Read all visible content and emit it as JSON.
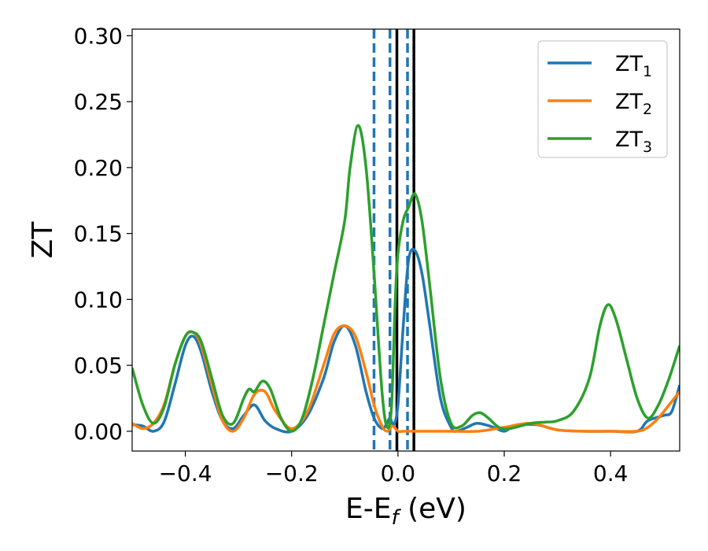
{
  "chart_data": {
    "type": "line",
    "title": "",
    "xlabel": {
      "main": "E-E",
      "sub": "f",
      "suffix": " (eV)"
    },
    "ylabel": "ZT",
    "xlim": [
      -0.5,
      0.53
    ],
    "ylim": [
      -0.015,
      0.305
    ],
    "xticks": [
      -0.4,
      -0.2,
      0.0,
      0.2,
      0.4
    ],
    "xtick_labels": [
      "−0.4",
      "−0.2",
      "0.0",
      "0.2",
      "0.4"
    ],
    "yticks": [
      0.0,
      0.05,
      0.1,
      0.15,
      0.2,
      0.25,
      0.3
    ],
    "ytick_labels": [
      "0.00",
      "0.05",
      "0.10",
      "0.15",
      "0.20",
      "0.25",
      "0.30"
    ],
    "grid": false,
    "legend_position": "top-right",
    "vlines": [
      {
        "x": -0.045,
        "style": "dashed",
        "color": "#1f77b4"
      },
      {
        "x": -0.015,
        "style": "dashed",
        "color": "#1f77b4"
      },
      {
        "x": 0.018,
        "style": "dashed",
        "color": "#1f77b4"
      },
      {
        "x": -0.002,
        "style": "solid",
        "color": "#000000"
      },
      {
        "x": 0.03,
        "style": "solid",
        "color": "#000000"
      }
    ],
    "series": [
      {
        "name": "ZT",
        "sub": "1",
        "color": "#1f77b4",
        "x": [
          -0.5,
          -0.48,
          -0.46,
          -0.44,
          -0.42,
          -0.4,
          -0.385,
          -0.37,
          -0.35,
          -0.33,
          -0.31,
          -0.29,
          -0.27,
          -0.25,
          -0.23,
          -0.2,
          -0.17,
          -0.14,
          -0.12,
          -0.1,
          -0.08,
          -0.06,
          -0.045,
          -0.03,
          -0.022,
          -0.015,
          -0.008,
          0.0,
          0.01,
          0.02,
          0.032,
          0.045,
          0.06,
          0.08,
          0.1,
          0.11,
          0.13,
          0.15,
          0.18,
          0.2,
          0.22,
          0.26,
          0.3,
          0.35,
          0.4,
          0.45,
          0.47,
          0.5,
          0.515,
          0.53
        ],
        "y": [
          0.005,
          0.004,
          0.0,
          0.007,
          0.035,
          0.065,
          0.072,
          0.06,
          0.03,
          0.008,
          0.002,
          0.012,
          0.02,
          0.008,
          0.002,
          0.0,
          0.012,
          0.04,
          0.068,
          0.08,
          0.065,
          0.03,
          0.01,
          0.002,
          0.005,
          0.01,
          0.005,
          0.02,
          0.08,
          0.13,
          0.137,
          0.12,
          0.08,
          0.025,
          0.003,
          0.0,
          0.003,
          0.006,
          0.003,
          0.0,
          0.004,
          0.005,
          0.001,
          0.0,
          0.0,
          0.0,
          0.008,
          0.012,
          0.015,
          0.035
        ]
      },
      {
        "name": "ZT",
        "sub": "2",
        "color": "#ff7f0e",
        "x": [
          -0.5,
          -0.48,
          -0.46,
          -0.44,
          -0.42,
          -0.4,
          -0.385,
          -0.37,
          -0.35,
          -0.33,
          -0.31,
          -0.29,
          -0.27,
          -0.25,
          -0.23,
          -0.2,
          -0.17,
          -0.14,
          -0.12,
          -0.1,
          -0.08,
          -0.06,
          -0.045,
          -0.03,
          -0.02,
          -0.01,
          0.0,
          0.01,
          0.02,
          0.03,
          0.04,
          0.06,
          0.08,
          0.1,
          0.15,
          0.2,
          0.25,
          0.3,
          0.35,
          0.4,
          0.45,
          0.47,
          0.49,
          0.51,
          0.53
        ],
        "y": [
          0.006,
          0.002,
          0.006,
          0.02,
          0.05,
          0.072,
          0.075,
          0.065,
          0.035,
          0.008,
          0.0,
          0.01,
          0.028,
          0.03,
          0.015,
          0.002,
          0.015,
          0.05,
          0.074,
          0.08,
          0.072,
          0.045,
          0.02,
          0.004,
          0.0,
          0.004,
          0.0,
          0.0,
          0.0,
          0.0,
          0.0,
          0.0,
          0.0,
          0.0,
          0.0,
          0.003,
          0.006,
          0.001,
          0.0,
          0.0,
          0.0,
          0.003,
          0.01,
          0.02,
          0.03
        ]
      },
      {
        "name": "ZT",
        "sub": "3",
        "color": "#2ca02c",
        "x": [
          -0.5,
          -0.48,
          -0.46,
          -0.44,
          -0.42,
          -0.4,
          -0.385,
          -0.37,
          -0.35,
          -0.33,
          -0.31,
          -0.29,
          -0.28,
          -0.27,
          -0.255,
          -0.24,
          -0.22,
          -0.2,
          -0.18,
          -0.16,
          -0.14,
          -0.12,
          -0.1,
          -0.09,
          -0.075,
          -0.06,
          -0.045,
          -0.03,
          -0.02,
          -0.012,
          -0.005,
          0.0,
          0.01,
          0.02,
          0.032,
          0.045,
          0.06,
          0.08,
          0.1,
          0.12,
          0.14,
          0.155,
          0.17,
          0.19,
          0.21,
          0.25,
          0.28,
          0.3,
          0.33,
          0.36,
          0.38,
          0.395,
          0.41,
          0.43,
          0.45,
          0.47,
          0.49,
          0.51,
          0.53
        ],
        "y": [
          0.048,
          0.02,
          0.006,
          0.018,
          0.05,
          0.072,
          0.075,
          0.068,
          0.04,
          0.012,
          0.006,
          0.025,
          0.032,
          0.03,
          0.038,
          0.032,
          0.01,
          0.0,
          0.01,
          0.04,
          0.08,
          0.12,
          0.16,
          0.2,
          0.232,
          0.2,
          0.12,
          0.03,
          0.003,
          0.02,
          0.1,
          0.135,
          0.16,
          0.17,
          0.18,
          0.16,
          0.11,
          0.04,
          0.006,
          0.004,
          0.012,
          0.014,
          0.01,
          0.003,
          0.002,
          0.006,
          0.007,
          0.008,
          0.015,
          0.04,
          0.08,
          0.096,
          0.085,
          0.055,
          0.025,
          0.01,
          0.02,
          0.04,
          0.065
        ]
      }
    ]
  }
}
